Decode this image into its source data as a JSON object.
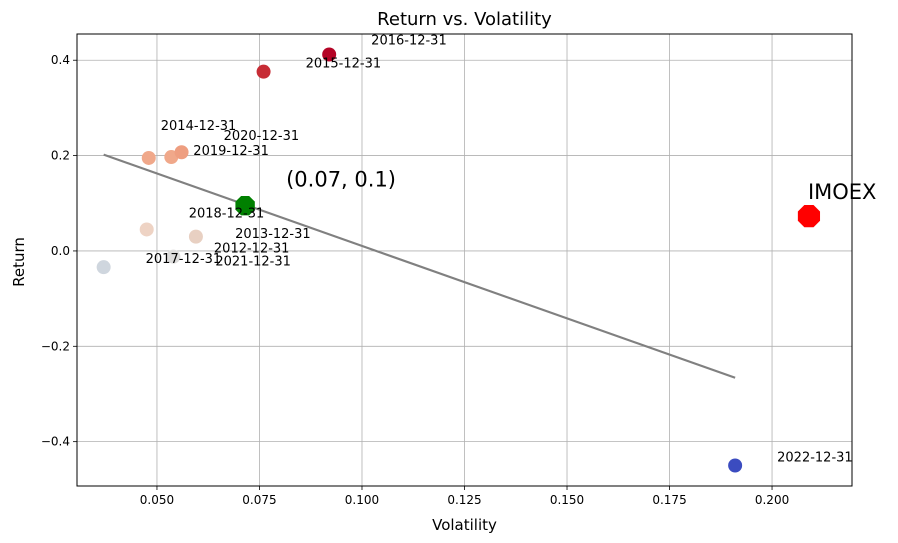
{
  "chart_data": {
    "type": "scatter",
    "title": "Return vs. Volatility",
    "xlabel": "Volatility",
    "ylabel": "Return",
    "xlim": [
      0.0305,
      0.2195
    ],
    "ylim": [
      -0.493,
      0.455
    ],
    "xticks": [
      0.05,
      0.075,
      0.1,
      0.125,
      0.15,
      0.175,
      0.2
    ],
    "xtick_labels": [
      "0.050",
      "0.075",
      "0.100",
      "0.125",
      "0.150",
      "0.175",
      "0.200"
    ],
    "yticks": [
      -0.4,
      -0.2,
      0.0,
      0.2,
      0.4
    ],
    "ytick_labels": [
      "−0.4",
      "−0.2",
      "0.0",
      "0.2",
      "0.4"
    ],
    "grid": true,
    "points": [
      {
        "label": "2012-12-31",
        "x": 0.0595,
        "y": 0.03,
        "color": "#e8d0c2"
      },
      {
        "label": "2013-12-31",
        "x": 0.0715,
        "y": 0.092,
        "color": "#2b2b2b"
      },
      {
        "label": "2014-12-31",
        "x": 0.048,
        "y": 0.195,
        "color": "#f0a88a"
      },
      {
        "label": "2015-12-31",
        "x": 0.076,
        "y": 0.376,
        "color": "#c72c35"
      },
      {
        "label": "2016-12-31",
        "x": 0.092,
        "y": 0.412,
        "color": "#b40426"
      },
      {
        "label": "2017-12-31",
        "x": 0.037,
        "y": -0.034,
        "color": "#cfd6de"
      },
      {
        "label": "2018-12-31",
        "x": 0.0475,
        "y": 0.045,
        "color": "#eed3c4"
      },
      {
        "label": "2019-12-31",
        "x": 0.0535,
        "y": 0.197,
        "color": "#f0a88a"
      },
      {
        "label": "2020-12-31",
        "x": 0.056,
        "y": 0.207,
        "color": "#ee9e80"
      },
      {
        "label": "2021-12-31",
        "x": 0.054,
        "y": -0.012,
        "color": "#dddcdb"
      },
      {
        "label": "2022-12-31",
        "x": 0.191,
        "y": -0.45,
        "color": "#3b4cc0"
      }
    ],
    "highlight": {
      "label": "(0.07, 0.1)",
      "x": 0.0715,
      "y": 0.095,
      "color": "#008000"
    },
    "benchmark": {
      "label": "IMOEX",
      "x": 0.209,
      "y": 0.073,
      "color": "#ff0000"
    },
    "trendline": {
      "x": [
        0.037,
        0.191
      ],
      "y": [
        0.202,
        -0.266
      ],
      "color": "#808080"
    }
  }
}
